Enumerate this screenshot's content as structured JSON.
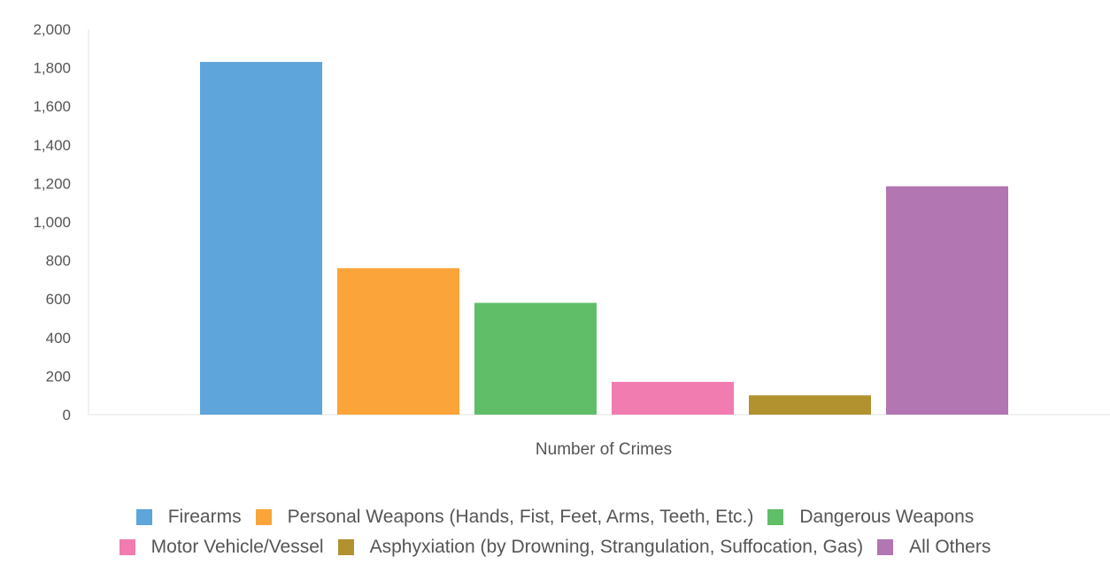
{
  "chart_data": {
    "type": "bar",
    "title": "",
    "xlabel": "Number of Crimes",
    "ylabel": "",
    "ylim": [
      0,
      2000
    ],
    "yticks": [
      0,
      200,
      400,
      600,
      800,
      1000,
      1200,
      1400,
      1600,
      1800,
      2000
    ],
    "ytick_labels": [
      "0",
      "200",
      "400",
      "600",
      "800",
      "1,000",
      "1,200",
      "1,400",
      "1,600",
      "1,800",
      "2,000"
    ],
    "categories": [
      "Number of Crimes"
    ],
    "series": [
      {
        "name": "Firearms",
        "values": [
          1830
        ],
        "color": "#5da5da"
      },
      {
        "name": "Personal Weapons (Hands, Fist, Feet, Arms, Teeth, Etc.)",
        "values": [
          760
        ],
        "color": "#faa43a"
      },
      {
        "name": "Dangerous Weapons",
        "values": [
          580
        ],
        "color": "#60bd68"
      },
      {
        "name": "Motor Vehicle/Vessel",
        "values": [
          170
        ],
        "color": "#f17cb0"
      },
      {
        "name": "Asphyxiation (by Drowning, Strangulation, Suffocation, Gas)",
        "values": [
          100
        ],
        "color": "#b2912f"
      },
      {
        "name": "All Others",
        "values": [
          1185
        ],
        "color": "#b276b2"
      }
    ],
    "grid": false,
    "legend_position": "bottom"
  }
}
